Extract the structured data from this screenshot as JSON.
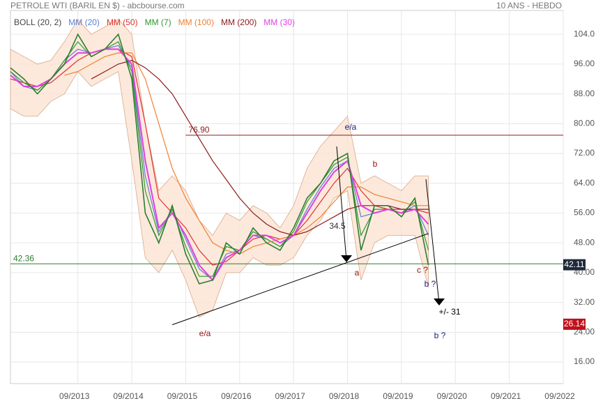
{
  "chart_data": {
    "type": "line",
    "title": "PETROLE WTI (BARIL EN $) - abcbourse.com",
    "subtitle": "10 ANS - HEBDO",
    "x": [
      "06/2012",
      "09/2012",
      "12/2012",
      "03/2013",
      "06/2013",
      "09/2013",
      "12/2013",
      "03/2014",
      "06/2014",
      "09/2014",
      "12/2014",
      "03/2015",
      "06/2015",
      "09/2015",
      "12/2015",
      "03/2016",
      "06/2016",
      "09/2016",
      "12/2016",
      "03/2017",
      "06/2017",
      "09/2017",
      "12/2017",
      "03/2018",
      "06/2018",
      "09/2018",
      "12/2018",
      "03/2019",
      "06/2019",
      "09/2019",
      "12/2019",
      "03/2020"
    ],
    "values": [
      95,
      92,
      88,
      92,
      96,
      104,
      98,
      100,
      104,
      92,
      56,
      48,
      58,
      45,
      37,
      38,
      48,
      45,
      52,
      48,
      46,
      52,
      60,
      64,
      70,
      72,
      46,
      58,
      58,
      55,
      60,
      42
    ],
    "color": "#2e7d32",
    "series": [
      {
        "name": "BOLL (20, 2)",
        "color": "#d9a88a",
        "upper": [
          100,
          98,
          96,
          97,
          102,
          108,
          104,
          106,
          108,
          104,
          80,
          62,
          66,
          62,
          54,
          50,
          56,
          54,
          58,
          56,
          52,
          58,
          68,
          74,
          78,
          82,
          64,
          66,
          64,
          62,
          66,
          66
        ],
        "lower": [
          84,
          82,
          82,
          86,
          88,
          94,
          90,
          92,
          94,
          70,
          44,
          40,
          46,
          38,
          28,
          30,
          40,
          40,
          44,
          42,
          42,
          44,
          50,
          54,
          60,
          62,
          38,
          48,
          50,
          50,
          50,
          36
        ]
      },
      {
        "name": "MM (20)",
        "color": "#5b7fd6",
        "values": [
          94,
          90,
          89,
          92,
          97,
          100,
          99,
          100,
          101,
          95,
          66,
          51,
          57,
          49,
          41,
          38,
          45,
          46,
          50,
          49,
          47,
          50,
          57,
          63,
          68,
          70,
          55,
          56,
          57,
          56,
          58,
          50
        ]
      },
      {
        "name": "MM (50)",
        "color": "#e03030",
        "values": [
          92,
          91,
          90,
          91,
          94,
          97,
          99,
          100,
          100,
          98,
          80,
          60,
          56,
          52,
          46,
          42,
          43,
          46,
          49,
          50,
          49,
          50,
          54,
          59,
          64,
          68,
          62,
          58,
          57,
          57,
          57,
          56
        ]
      },
      {
        "name": "MM (7)",
        "color": "#2a9a2a",
        "values": [
          94,
          91,
          89,
          92,
          97,
          102,
          98,
          100,
          102,
          94,
          62,
          50,
          57,
          47,
          39,
          39,
          47,
          46,
          51,
          49,
          47,
          51,
          59,
          64,
          69,
          71,
          50,
          57,
          57,
          56,
          59,
          46
        ]
      },
      {
        "name": "MM (100)",
        "color": "#f08030",
        "values": [
          null,
          null,
          null,
          null,
          93,
          94,
          96,
          98,
          99,
          99,
          92,
          80,
          68,
          60,
          54,
          48,
          46,
          45,
          47,
          48,
          49,
          50,
          52,
          55,
          59,
          63,
          63,
          61,
          60,
          59,
          58,
          58
        ]
      },
      {
        "name": "MM (200)",
        "color": "#8b1a1a",
        "values": [
          null,
          null,
          null,
          null,
          null,
          null,
          92,
          94,
          96,
          97,
          95,
          92,
          88,
          82,
          76,
          70,
          65,
          60,
          56,
          53,
          51,
          50,
          51,
          53,
          55,
          57,
          58,
          58,
          58,
          57,
          57,
          57
        ]
      },
      {
        "name": "MM (30)",
        "color": "#e040e0",
        "values": [
          93,
          90,
          90,
          92,
          96,
          99,
          99,
          100,
          100,
          96,
          70,
          52,
          56,
          50,
          42,
          38,
          44,
          46,
          50,
          50,
          48,
          50,
          56,
          62,
          67,
          70,
          58,
          56,
          57,
          56,
          57,
          53
        ]
      }
    ],
    "xlim": [
      "06/2012",
      "09/2022"
    ],
    "xticks": [
      "09/2013",
      "09/2014",
      "09/2015",
      "09/2016",
      "09/2017",
      "09/2018",
      "09/2019",
      "09/2020",
      "09/2021",
      "09/2022"
    ],
    "ylim": [
      10.2,
      110.4
    ],
    "yticks": [
      {
        "value": 16,
        "label": "16.00"
      },
      {
        "value": 24,
        "label": "24.00"
      },
      {
        "value": 32,
        "label": "32.00"
      },
      {
        "value": 40,
        "label": "40.00"
      },
      {
        "value": 48,
        "label": "48.00"
      },
      {
        "value": 56,
        "label": "56.00"
      },
      {
        "value": 64,
        "label": "64.00"
      },
      {
        "value": 72,
        "label": "72.00"
      },
      {
        "value": 80,
        "label": "80.00"
      },
      {
        "value": 88,
        "label": "88.00"
      },
      {
        "value": 96,
        "label": "96.00"
      },
      {
        "value": 104,
        "label": "104.0"
      }
    ],
    "grid": true,
    "hlines": [
      {
        "value": 76.9,
        "label": "76.90",
        "color": "#8b1a1a",
        "from": "09/2015"
      },
      {
        "value": 42.36,
        "label": "42.36",
        "color": "#2e7d32",
        "from": "06/2012"
      }
    ],
    "trend_line": {
      "x": [
        "06/2015",
        "03/2020"
      ],
      "values": [
        26,
        50.5
      ]
    },
    "tags": [
      42.11,
      26.14
    ],
    "tag_colors": [
      "#1f2a3a",
      "#c0101a"
    ],
    "annotations": [
      "e/a",
      "e/a",
      "b",
      "a",
      "c ?",
      "b ?",
      "b ?",
      "34.5",
      "+/- 31"
    ]
  }
}
